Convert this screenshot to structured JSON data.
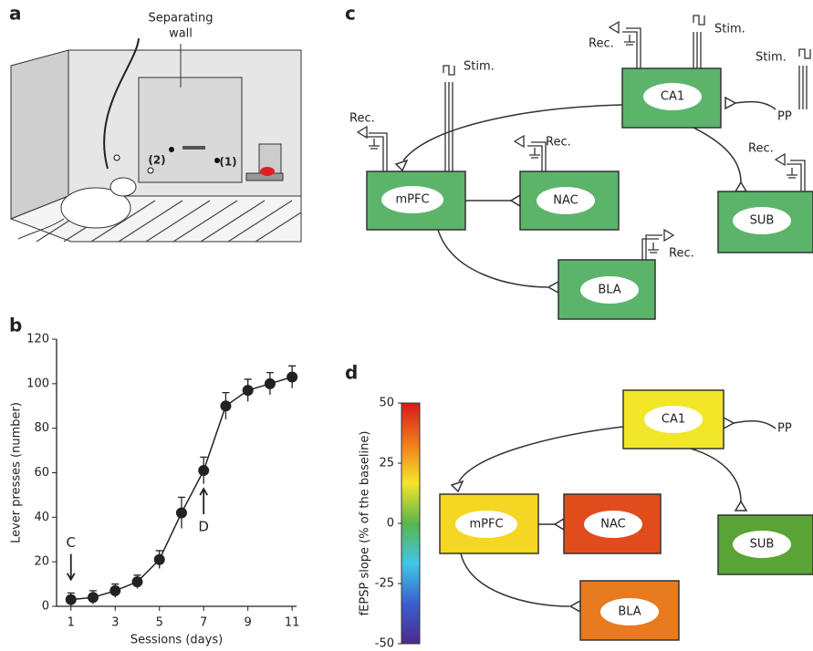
{
  "panel_labels": [
    "a",
    "b",
    "c",
    "d"
  ],
  "panel_a": {
    "wall_label": [
      "Separating",
      "wall"
    ],
    "markers": [
      "(1)",
      "(2)"
    ]
  },
  "panel_c": {
    "nodes": [
      "CA1",
      "mPFC",
      "NAC",
      "SUB",
      "BLA"
    ],
    "input": "PP",
    "recording_labels": [
      "Rec.",
      "Rec.",
      "Rec.",
      "Rec.",
      "Rec."
    ],
    "stim_labels": [
      "Stim.",
      "Stim.",
      "Stim."
    ]
  },
  "panel_d": {
    "nodes": [
      "CA1",
      "mPFC",
      "NAC",
      "SUB",
      "BLA"
    ],
    "input": "PP"
  },
  "chart_data": [
    {
      "type": "line",
      "xlabel": "Sessions (days)",
      "ylabel": "Lever presses (number)",
      "x": [
        1,
        2,
        3,
        4,
        5,
        6,
        7,
        8,
        9,
        10,
        11
      ],
      "values": [
        3,
        4,
        7,
        11,
        21,
        42,
        61,
        90,
        97,
        100,
        103
      ],
      "errors": [
        3,
        3,
        3,
        3,
        4,
        7,
        6,
        6,
        5,
        5,
        5
      ],
      "color": "#222222",
      "xlim": [
        0.35,
        11.2
      ],
      "ylim": [
        0,
        120
      ],
      "xticks": [
        1,
        3,
        5,
        7,
        9,
        11
      ],
      "yticks": [
        0,
        20,
        40,
        60,
        80,
        100,
        120
      ],
      "annotations": [
        {
          "text": "C",
          "x": 1
        },
        {
          "text": "D",
          "x": 7
        }
      ]
    },
    {
      "type": "colorbar",
      "ylabel": "fEPSP slope (% of the baseline)",
      "ylim": [
        -50,
        50
      ],
      "yticks": [
        50,
        25,
        0,
        -25,
        -50
      ],
      "colors": [
        "#d7191c",
        "#f07a1a",
        "#f5e62a",
        "#5ab54a",
        "#3fc6e8",
        "#3a5fcf",
        "#4b2a8f"
      ]
    }
  ]
}
